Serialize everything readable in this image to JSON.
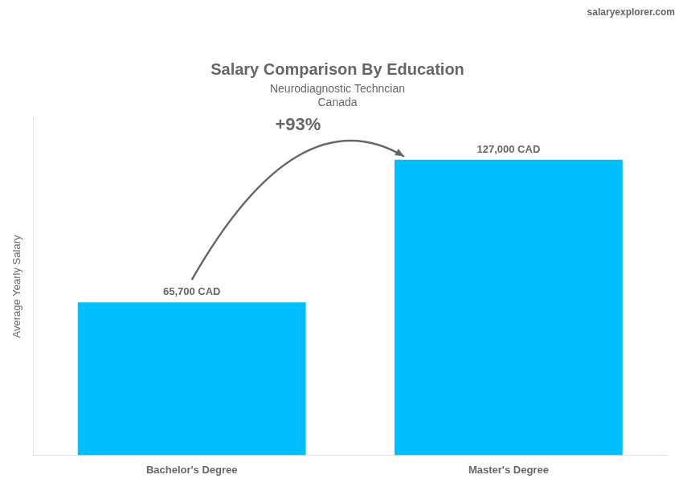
{
  "chart_data": {
    "type": "bar",
    "title": "Salary Comparison By Education",
    "subtitle": [
      "Neurodiagnostic Techncian",
      "Canada"
    ],
    "y_label": "Average Yearly Salary",
    "annotations": [
      "+93%",
      "salaryexplorer.com"
    ],
    "categories": [
      "Bachelor's Degree",
      "Master's Degree"
    ],
    "values": [
      65700,
      127000
    ],
    "value_labels": [
      "65,700 CAD",
      "127,000 CAD"
    ],
    "data_labels": true,
    "color": "#00BFFF",
    "ylim": [
      0,
      145000
    ],
    "tick_labels": "x",
    "grid": false,
    "legend": false
  }
}
